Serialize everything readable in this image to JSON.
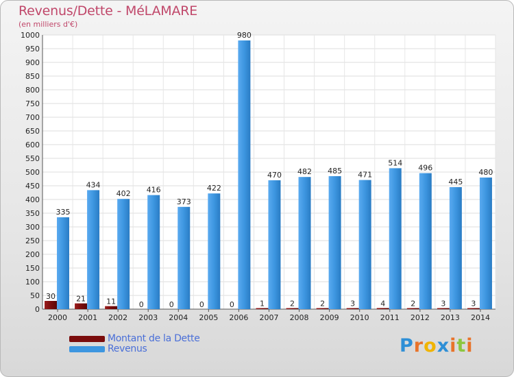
{
  "chart_data": {
    "type": "bar",
    "title": "Revenus/Dette - MéLAMARE",
    "subtitle": "(en milliers d'€)",
    "categories": [
      "2000",
      "2001",
      "2002",
      "2003",
      "2004",
      "2005",
      "2006",
      "2007",
      "2008",
      "2009",
      "2010",
      "2011",
      "2012",
      "2013",
      "2014"
    ],
    "series": [
      {
        "name": "Montant de la Dette",
        "color": "#7a0c0c",
        "values": [
          30,
          21,
          11,
          0,
          0,
          0,
          0,
          1,
          2,
          2,
          3,
          4,
          2,
          3,
          3
        ]
      },
      {
        "name": "Revenus",
        "color": "#3d96e0",
        "values": [
          335,
          434,
          402,
          416,
          373,
          422,
          980,
          470,
          482,
          485,
          471,
          514,
          496,
          445,
          480
        ]
      }
    ],
    "ylim": [
      0,
      1000
    ],
    "yticks": [
      0,
      50,
      100,
      150,
      200,
      250,
      300,
      350,
      400,
      450,
      500,
      550,
      600,
      650,
      700,
      750,
      800,
      850,
      900,
      950,
      1000
    ],
    "grid": true,
    "legend_position": "bottom-left"
  },
  "logo": {
    "text": "Proxiti",
    "letters": [
      "P",
      "r",
      "o",
      "x",
      "i",
      "t",
      "i"
    ],
    "colors": [
      "#2e8fd6",
      "#e8732a",
      "#f0b400",
      "#2e8fd6",
      "#e8732a",
      "#8cc63f",
      "#e8732a"
    ]
  }
}
